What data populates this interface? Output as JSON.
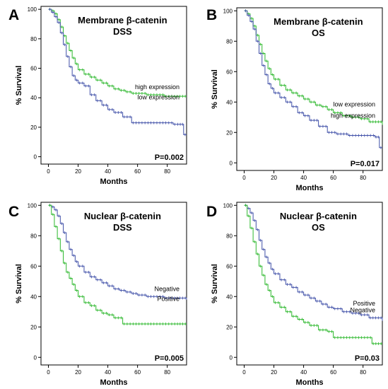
{
  "chart_data": [
    {
      "type": "line",
      "panel_label": "A",
      "title": "Membrane β-catenin",
      "subtitle": "DSS",
      "xlabel": "Months",
      "ylabel": "% Survival",
      "xlim": [
        -5,
        93
      ],
      "ylim": [
        -5,
        102
      ],
      "xticks": [
        0,
        20,
        40,
        60,
        80
      ],
      "yticks": [
        0,
        20,
        40,
        60,
        80,
        100
      ],
      "pvalue": "P=0.002",
      "series": [
        {
          "name": "high expression",
          "color": "#2db82d",
          "x": [
            0,
            2,
            4,
            6,
            8,
            10,
            12,
            14,
            16,
            18,
            20,
            24,
            28,
            32,
            36,
            40,
            44,
            48,
            52,
            56,
            60,
            66,
            72,
            78,
            84,
            93
          ],
          "y": [
            100,
            99,
            97,
            93,
            88,
            82,
            77,
            72,
            67,
            63,
            59,
            56,
            54,
            52,
            50,
            48,
            46,
            45,
            44,
            43,
            43,
            42,
            42,
            41,
            41,
            41
          ]
        },
        {
          "name": "low expression",
          "color": "#4050a8",
          "x": [
            0,
            2,
            4,
            6,
            8,
            10,
            12,
            14,
            16,
            18,
            20,
            24,
            28,
            32,
            36,
            40,
            44,
            50,
            56,
            62,
            70,
            78,
            84,
            88,
            91,
            93
          ],
          "y": [
            100,
            98,
            95,
            91,
            84,
            76,
            68,
            61,
            55,
            52,
            50,
            48,
            42,
            38,
            35,
            32,
            30,
            27,
            23,
            23,
            23,
            23,
            22,
            22,
            15,
            15
          ]
        }
      ]
    },
    {
      "type": "line",
      "panel_label": "B",
      "title": "Membrane β-catenin",
      "subtitle": "OS",
      "xlabel": "Months",
      "ylabel": "% Survival",
      "xlim": [
        -5,
        93
      ],
      "ylim": [
        -5,
        102
      ],
      "xticks": [
        0,
        20,
        40,
        60,
        80
      ],
      "yticks": [
        0,
        20,
        40,
        60,
        80,
        100
      ],
      "pvalue": "P=0.017",
      "series": [
        {
          "name": "high expression",
          "color": "#2db82d",
          "x": [
            0,
            2,
            4,
            6,
            8,
            10,
            12,
            14,
            16,
            18,
            20,
            24,
            28,
            32,
            36,
            40,
            44,
            48,
            52,
            56,
            60,
            66,
            72,
            78,
            84,
            93
          ],
          "y": [
            100,
            98,
            95,
            90,
            84,
            78,
            72,
            67,
            62,
            58,
            55,
            51,
            48,
            46,
            44,
            42,
            40,
            38,
            37,
            35,
            33,
            31,
            30,
            29,
            27,
            25
          ]
        },
        {
          "name": "low expression",
          "color": "#4050a8",
          "x": [
            0,
            2,
            4,
            6,
            8,
            10,
            12,
            14,
            16,
            18,
            20,
            24,
            28,
            32,
            36,
            40,
            44,
            50,
            56,
            62,
            70,
            78,
            84,
            88,
            91,
            93
          ],
          "y": [
            100,
            97,
            93,
            88,
            80,
            72,
            64,
            58,
            52,
            49,
            46,
            43,
            40,
            37,
            33,
            31,
            28,
            24,
            20,
            19,
            18,
            18,
            18,
            17,
            10,
            10
          ]
        }
      ]
    },
    {
      "type": "line",
      "panel_label": "C",
      "title": "Nuclear β-catenin",
      "subtitle": "DSS",
      "xlabel": "Months",
      "ylabel": "% Survival",
      "xlim": [
        -5,
        93
      ],
      "ylim": [
        -5,
        102
      ],
      "xticks": [
        0,
        20,
        40,
        60,
        80
      ],
      "yticks": [
        0,
        20,
        40,
        60,
        80,
        100
      ],
      "pvalue": "P=0.005",
      "series": [
        {
          "name": "Negative",
          "color": "#4050a8",
          "x": [
            0,
            2,
            4,
            6,
            8,
            10,
            12,
            14,
            16,
            18,
            20,
            24,
            28,
            32,
            36,
            40,
            44,
            48,
            52,
            56,
            60,
            66,
            72,
            78,
            84,
            93
          ],
          "y": [
            100,
            99,
            97,
            93,
            88,
            82,
            76,
            71,
            67,
            63,
            60,
            56,
            53,
            51,
            49,
            47,
            45,
            44,
            43,
            42,
            41,
            40,
            40,
            39,
            39,
            38
          ]
        },
        {
          "name": "Positive",
          "color": "#2db82d",
          "x": [
            0,
            2,
            4,
            6,
            8,
            10,
            12,
            14,
            16,
            18,
            20,
            24,
            28,
            32,
            36,
            40,
            44,
            50,
            56,
            62,
            70,
            78,
            86,
            93
          ],
          "y": [
            100,
            94,
            86,
            78,
            70,
            62,
            56,
            52,
            48,
            44,
            40,
            36,
            34,
            31,
            29,
            28,
            26,
            22,
            22,
            22,
            22,
            22,
            22,
            22
          ]
        }
      ]
    },
    {
      "type": "line",
      "panel_label": "D",
      "title": "Nuclear β-catenin",
      "subtitle": "OS",
      "xlabel": "Months",
      "ylabel": "% Survival",
      "xlim": [
        -5,
        93
      ],
      "ylim": [
        -5,
        102
      ],
      "xticks": [
        0,
        20,
        40,
        60,
        80
      ],
      "yticks": [
        0,
        20,
        40,
        60,
        80,
        100
      ],
      "pvalue": "P=0.03",
      "series": [
        {
          "name": "Negative",
          "color": "#4050a8",
          "x": [
            0,
            2,
            4,
            6,
            8,
            10,
            12,
            14,
            16,
            18,
            20,
            24,
            28,
            32,
            36,
            40,
            44,
            48,
            52,
            56,
            60,
            66,
            72,
            78,
            84,
            93
          ],
          "y": [
            100,
            98,
            95,
            90,
            84,
            77,
            71,
            66,
            62,
            58,
            55,
            51,
            48,
            46,
            43,
            41,
            39,
            37,
            35,
            33,
            32,
            30,
            29,
            28,
            26,
            24
          ]
        },
        {
          "name": "Positive",
          "color": "#2db82d",
          "x": [
            0,
            2,
            4,
            6,
            8,
            10,
            12,
            14,
            16,
            18,
            20,
            24,
            28,
            32,
            36,
            40,
            44,
            50,
            56,
            60,
            66,
            72,
            80,
            86,
            93
          ],
          "y": [
            100,
            93,
            85,
            76,
            68,
            60,
            54,
            48,
            44,
            40,
            36,
            33,
            30,
            27,
            25,
            23,
            21,
            18,
            17,
            13,
            13,
            13,
            13,
            9,
            9
          ]
        }
      ]
    }
  ]
}
